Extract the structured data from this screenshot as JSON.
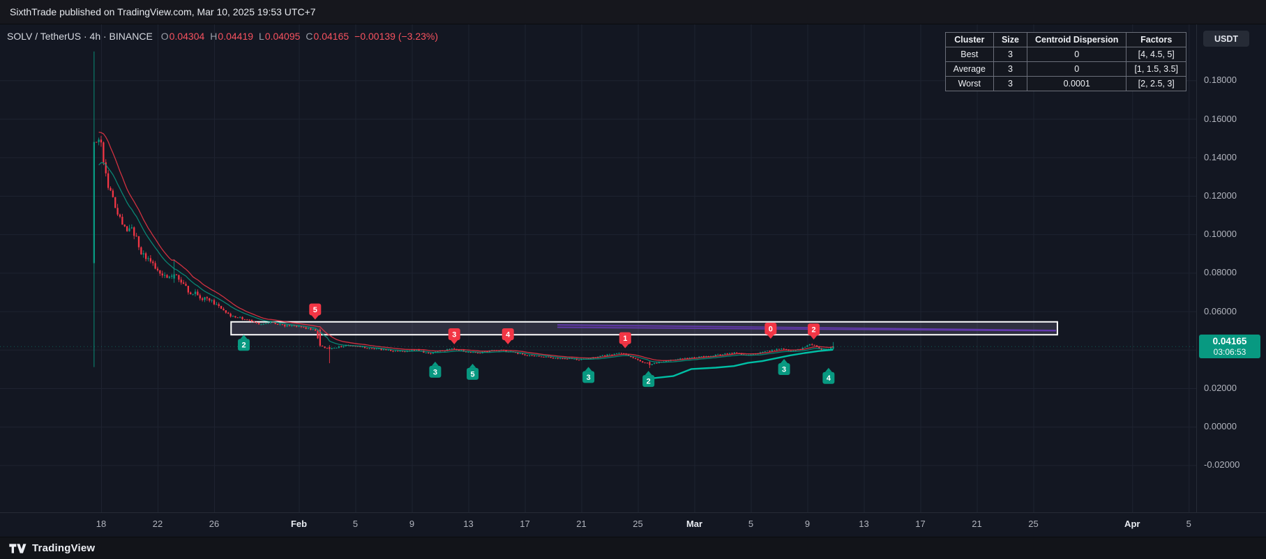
{
  "topbar": {
    "attribution": "SixthTrade published on TradingView.com, Mar 10, 2025 19:53 UTC+7"
  },
  "legend": {
    "symbol": "SOLV / TetherUS · 4h · BINANCE",
    "o_label": "O",
    "o_value": "0.04304",
    "h_label": "H",
    "h_value": "0.04419",
    "l_label": "L",
    "l_value": "0.04095",
    "c_label": "C",
    "c_value": "0.04165",
    "change": "−0.00139 (−3.23%)"
  },
  "cluster_table": {
    "headers": [
      "Cluster",
      "Size",
      "Centroid Dispersion",
      "Factors"
    ],
    "rows": [
      [
        "Best",
        "3",
        "0",
        "[4, 4.5, 5]"
      ],
      [
        "Average",
        "3",
        "0",
        "[1, 1.5, 3.5]"
      ],
      [
        "Worst",
        "3",
        "0.0001",
        "[2, 2.5, 3]"
      ]
    ]
  },
  "price_scale": {
    "currency_button": "USDT",
    "labels": [
      {
        "price": 0.18,
        "text": "0.18000"
      },
      {
        "price": 0.16,
        "text": "0.16000"
      },
      {
        "price": 0.14,
        "text": "0.14000"
      },
      {
        "price": 0.12,
        "text": "0.12000"
      },
      {
        "price": 0.1,
        "text": "0.10000"
      },
      {
        "price": 0.08,
        "text": "0.08000"
      },
      {
        "price": 0.06,
        "text": "0.06000"
      },
      {
        "price": 0.04,
        "text": "0.04000"
      },
      {
        "price": 0.02,
        "text": "0.02000"
      },
      {
        "price": 0.0,
        "text": "0.00000"
      },
      {
        "price": -0.02,
        "text": "-0.02000"
      }
    ],
    "last_price_tag": {
      "price": "0.04165",
      "countdown": "03:06:53",
      "value": 0.04165
    }
  },
  "time_axis": {
    "ticks": [
      {
        "t": 0,
        "label": "18"
      },
      {
        "t": 4,
        "label": "22"
      },
      {
        "t": 8,
        "label": "26"
      },
      {
        "t": 14,
        "label": "Feb",
        "major": true
      },
      {
        "t": 18,
        "label": "5"
      },
      {
        "t": 22,
        "label": "9"
      },
      {
        "t": 26,
        "label": "13"
      },
      {
        "t": 30,
        "label": "17"
      },
      {
        "t": 34,
        "label": "21"
      },
      {
        "t": 38,
        "label": "25"
      },
      {
        "t": 42,
        "label": "Mar",
        "major": true
      },
      {
        "t": 46,
        "label": "5"
      },
      {
        "t": 50,
        "label": "9"
      },
      {
        "t": 54,
        "label": "13"
      },
      {
        "t": 58,
        "label": "17"
      },
      {
        "t": 62,
        "label": "21"
      },
      {
        "t": 66,
        "label": "25"
      },
      {
        "t": 73,
        "label": "Apr",
        "major": true
      },
      {
        "t": 77,
        "label": "5"
      }
    ]
  },
  "footer": {
    "brand": "TradingView"
  },
  "colors": {
    "up": "#089981",
    "down": "#f23645",
    "grid": "#1e2330",
    "box_border": "#ffffff",
    "box_fill": "rgba(203,191,237,0.15)",
    "wedge": "#673ab7",
    "trail": "#00bfa5",
    "tag_bg": "#089981"
  },
  "chart_data": {
    "type": "candlestick",
    "symbol": "SOLV/USDT",
    "exchange": "BINANCE",
    "interval": "4h",
    "title": "SOLV / TetherUS · 4h · BINANCE",
    "x_axis": {
      "unit": "days since Jan 18 2025",
      "range": [
        -1,
        78
      ],
      "grid": true
    },
    "y_axis": {
      "range": [
        -0.03,
        0.2
      ],
      "tick_step": 0.02,
      "grid": true
    },
    "last": {
      "open": 0.04304,
      "high": 0.04419,
      "low": 0.04095,
      "close": 0.04165,
      "change": -0.00139,
      "change_pct": -3.23
    },
    "t_start": -0.5,
    "t_end": 51.9,
    "price_path": [
      [
        -0.5,
        0.085
      ],
      [
        -0.333,
        0.15
      ],
      [
        0,
        0.152
      ],
      [
        0.3,
        0.14
      ],
      [
        0.7,
        0.125
      ],
      [
        1,
        0.118
      ],
      [
        1.5,
        0.108
      ],
      [
        2,
        0.102
      ],
      [
        2.3,
        0.106
      ],
      [
        2.7,
        0.096
      ],
      [
        3,
        0.091
      ],
      [
        3.5,
        0.086
      ],
      [
        4,
        0.083
      ],
      [
        4.5,
        0.08
      ],
      [
        5,
        0.078
      ],
      [
        5.3,
        0.081
      ],
      [
        5.7,
        0.076
      ],
      [
        6,
        0.073
      ],
      [
        6.5,
        0.07
      ],
      [
        7,
        0.068
      ],
      [
        7.5,
        0.0665
      ],
      [
        8,
        0.065
      ],
      [
        8.5,
        0.062
      ],
      [
        9,
        0.059
      ],
      [
        9.5,
        0.057
      ],
      [
        10,
        0.0565
      ],
      [
        10.5,
        0.0555
      ],
      [
        11,
        0.054
      ],
      [
        11.5,
        0.0535
      ],
      [
        12,
        0.0545
      ],
      [
        12.5,
        0.0535
      ],
      [
        13,
        0.0525
      ],
      [
        13.5,
        0.0528
      ],
      [
        14,
        0.0522
      ],
      [
        14.5,
        0.0515
      ],
      [
        15,
        0.0505
      ],
      [
        15.4,
        0.0502
      ],
      [
        15.6,
        0.0425
      ],
      [
        16,
        0.0412
      ],
      [
        16.3,
        0.0398
      ],
      [
        16.6,
        0.041
      ],
      [
        17,
        0.0415
      ],
      [
        17.5,
        0.042
      ],
      [
        18,
        0.0422
      ],
      [
        18.5,
        0.0416
      ],
      [
        19,
        0.041
      ],
      [
        19.5,
        0.0405
      ],
      [
        20,
        0.0402
      ],
      [
        20.5,
        0.0398
      ],
      [
        21,
        0.0394
      ],
      [
        21.5,
        0.039
      ],
      [
        22,
        0.0396
      ],
      [
        22.5,
        0.04
      ],
      [
        23,
        0.0388
      ],
      [
        23.5,
        0.0383
      ],
      [
        24,
        0.039
      ],
      [
        24.5,
        0.0398
      ],
      [
        25,
        0.0405
      ],
      [
        25.5,
        0.0398
      ],
      [
        26,
        0.039
      ],
      [
        26.5,
        0.0387
      ],
      [
        27,
        0.0385
      ],
      [
        27.5,
        0.039
      ],
      [
        28,
        0.0395
      ],
      [
        28.5,
        0.0398
      ],
      [
        29,
        0.039
      ],
      [
        29.5,
        0.0383
      ],
      [
        30,
        0.0375
      ],
      [
        30.5,
        0.037
      ],
      [
        31,
        0.0366
      ],
      [
        31.5,
        0.0362
      ],
      [
        32,
        0.036
      ],
      [
        32.5,
        0.0357
      ],
      [
        33,
        0.0355
      ],
      [
        33.5,
        0.0352
      ],
      [
        34,
        0.035
      ],
      [
        34.5,
        0.0352
      ],
      [
        35,
        0.0358
      ],
      [
        35.5,
        0.0365
      ],
      [
        36,
        0.0372
      ],
      [
        36.5,
        0.0378
      ],
      [
        37,
        0.038
      ],
      [
        37.3,
        0.0376
      ],
      [
        37.7,
        0.036
      ],
      [
        38,
        0.035
      ],
      [
        38.5,
        0.0336
      ],
      [
        39,
        0.0325
      ],
      [
        39.5,
        0.0332
      ],
      [
        40,
        0.034
      ],
      [
        40.5,
        0.0345
      ],
      [
        41,
        0.035
      ],
      [
        41.5,
        0.0354
      ],
      [
        42,
        0.0358
      ],
      [
        42.5,
        0.0362
      ],
      [
        43,
        0.0366
      ],
      [
        43.5,
        0.037
      ],
      [
        44,
        0.0374
      ],
      [
        44.5,
        0.038
      ],
      [
        45,
        0.0385
      ],
      [
        45.5,
        0.0378
      ],
      [
        46,
        0.0374
      ],
      [
        46.5,
        0.038
      ],
      [
        47,
        0.0388
      ],
      [
        47.5,
        0.0395
      ],
      [
        48,
        0.0402
      ],
      [
        48.3,
        0.0408
      ],
      [
        48.7,
        0.0398
      ],
      [
        49,
        0.0394
      ],
      [
        49.5,
        0.04
      ],
      [
        50,
        0.0412
      ],
      [
        50.4,
        0.043
      ],
      [
        50.7,
        0.042
      ],
      [
        51,
        0.0405
      ],
      [
        51.3,
        0.0398
      ],
      [
        51.6,
        0.0402
      ],
      [
        52,
        0.0417
      ]
    ],
    "special_candles": [
      {
        "t": -0.5,
        "o": 0.085,
        "h": 0.195,
        "l": 0.031,
        "c": 0.148
      },
      {
        "t": 5.1667,
        "o": 0.077,
        "h": 0.087,
        "l": 0.0748,
        "c": 0.0792
      },
      {
        "t": 15.5,
        "o": 0.0504,
        "h": 0.0512,
        "l": 0.0414,
        "c": 0.0421
      },
      {
        "t": 16.1667,
        "o": 0.0414,
        "h": 0.0424,
        "l": 0.033,
        "c": 0.0404
      },
      {
        "t": 38.8333,
        "o": 0.0336,
        "h": 0.0341,
        "l": 0.0305,
        "c": 0.0321
      },
      {
        "t": 51.8333,
        "o": 0.0405,
        "h": 0.044,
        "l": 0.0398,
        "c": 0.04165
      }
    ],
    "signals": {
      "sell": [
        {
          "label": "5",
          "t": 15.15,
          "price": 0.0557
        },
        {
          "label": "3",
          "t": 25.0,
          "price": 0.0428
        },
        {
          "label": "4",
          "t": 28.8,
          "price": 0.0428
        },
        {
          "label": "1",
          "t": 37.1,
          "price": 0.0408
        },
        {
          "label": "0",
          "t": 47.4,
          "price": 0.0457
        },
        {
          "label": "2",
          "t": 50.45,
          "price": 0.0453
        }
      ],
      "buy": [
        {
          "label": "2",
          "t": 10.1,
          "price": 0.0478
        },
        {
          "label": "3",
          "t": 23.65,
          "price": 0.0338
        },
        {
          "label": "5",
          "t": 26.3,
          "price": 0.0327
        },
        {
          "label": "3",
          "t": 34.5,
          "price": 0.0311
        },
        {
          "label": "2",
          "t": 38.75,
          "price": 0.029
        },
        {
          "label": "3",
          "t": 48.35,
          "price": 0.0352
        },
        {
          "label": "4",
          "t": 51.5,
          "price": 0.0306
        }
      ]
    },
    "box": {
      "t1": 9.2,
      "t2": 67.7,
      "price_top": 0.0545,
      "price_bottom": 0.0478
    },
    "wedge_lines": [
      {
        "t1": 32.3,
        "p1": 0.053,
        "t2": 67.6,
        "p2": 0.0501
      },
      {
        "t1": 32.3,
        "p1": 0.0516,
        "t2": 67.6,
        "p2": 0.0498
      }
    ],
    "trail_line": [
      [
        38.8,
        0.025
      ],
      [
        40.5,
        0.0263
      ],
      [
        41.8,
        0.03
      ],
      [
        43.5,
        0.0307
      ],
      [
        44.8,
        0.0315
      ],
      [
        45.8,
        0.0332
      ],
      [
        46.8,
        0.0341
      ],
      [
        47.8,
        0.0356
      ],
      [
        48.8,
        0.0371
      ],
      [
        49.8,
        0.0383
      ],
      [
        50.8,
        0.0393
      ],
      [
        51.8,
        0.04
      ]
    ]
  }
}
